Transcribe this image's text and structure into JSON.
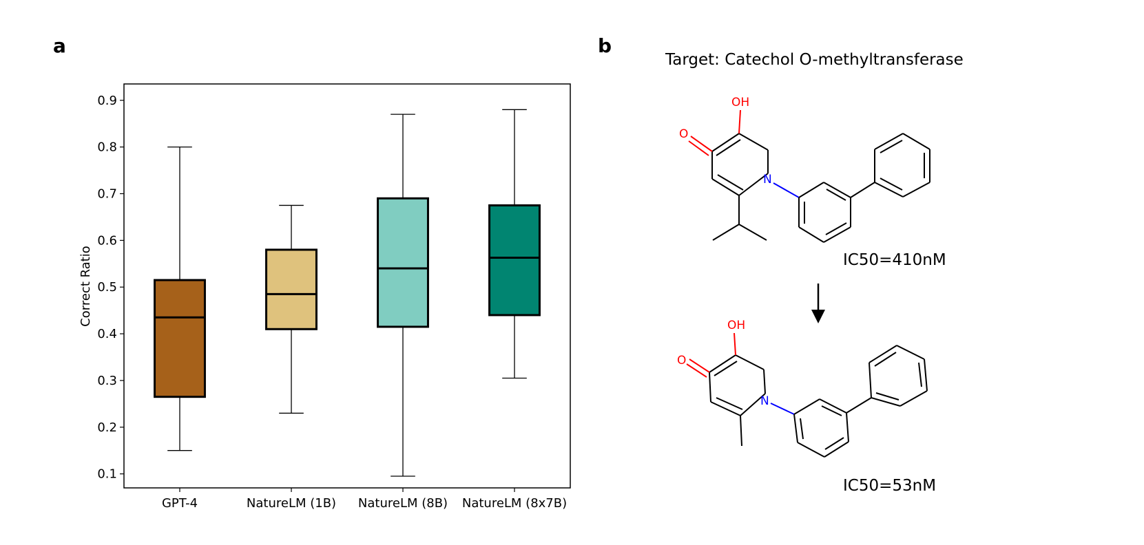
{
  "panels": {
    "a_label": "a",
    "b_label": "b"
  },
  "chart_data": {
    "type": "box",
    "title": "",
    "xlabel": "",
    "ylabel": "Correct Ratio",
    "ylim": [
      0.07,
      0.935
    ],
    "yticks": [
      "0.1",
      "0.2",
      "0.3",
      "0.4",
      "0.5",
      "0.6",
      "0.7",
      "0.8",
      "0.9"
    ],
    "grid": false,
    "categories": [
      "GPT-4",
      "NatureLM (1B)",
      "NatureLM (8B)",
      "NatureLM (8x7B)"
    ],
    "boxes": [
      {
        "whisker_low": 0.15,
        "q1": 0.265,
        "median": 0.435,
        "q3": 0.515,
        "whisker_high": 0.8,
        "color": "#a6611a"
      },
      {
        "whisker_low": 0.23,
        "q1": 0.41,
        "median": 0.485,
        "q3": 0.58,
        "whisker_high": 0.675,
        "color": "#dfc27d"
      },
      {
        "whisker_low": 0.095,
        "q1": 0.415,
        "median": 0.54,
        "q3": 0.69,
        "whisker_high": 0.87,
        "color": "#80cdc1"
      },
      {
        "whisker_low": 0.305,
        "q1": 0.44,
        "median": 0.563,
        "q3": 0.675,
        "whisker_high": 0.88,
        "color": "#018571"
      }
    ]
  },
  "molecules": {
    "target": "Target: Catechol O-methyltransferase",
    "top_ic50": "IC50=410nM",
    "bottom_ic50": "IC50=53nM",
    "atoms": {
      "oh": "OH",
      "o": "O",
      "n": "N"
    }
  }
}
